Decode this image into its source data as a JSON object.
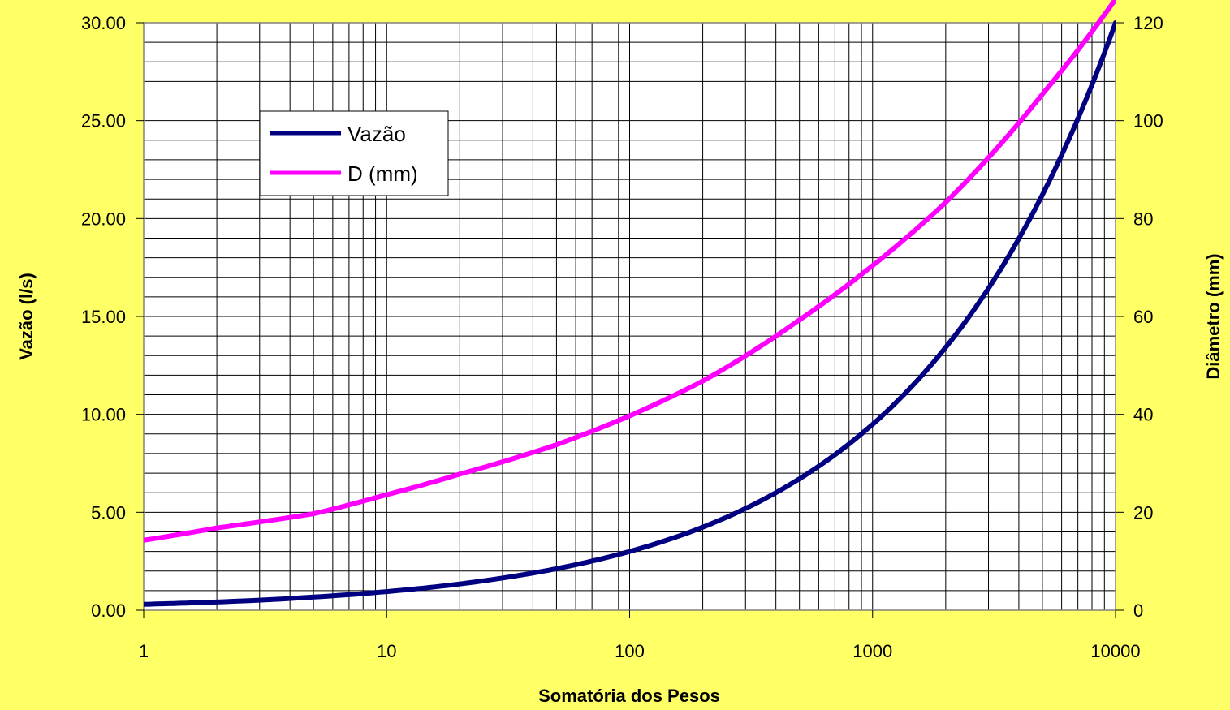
{
  "chart_data": {
    "type": "line",
    "title": "",
    "xlabel": "Somatória dos Pesos",
    "ylabel": "Vazão (l/s)",
    "y2label": "Diâmetro (mm)",
    "xscale": "log",
    "xlim": [
      1,
      10000
    ],
    "ylim": [
      0,
      30
    ],
    "y2lim": [
      0,
      120
    ],
    "grid": true,
    "legend_position": "top-left",
    "x_ticks": [
      "1",
      "10",
      "100",
      "1000",
      "10000"
    ],
    "y_ticks": [
      "0.00",
      "5.00",
      "10.00",
      "15.00",
      "20.00",
      "25.00",
      "30.00"
    ],
    "y2_ticks": [
      "0",
      "20",
      "40",
      "60",
      "80",
      "100",
      "120"
    ],
    "colors": {
      "background": "#FFFF66",
      "plot_area": "#FFFFFF",
      "vazao": "#000080",
      "diameter": "#FF00FF"
    },
    "series": [
      {
        "name": "Vazão",
        "axis": "left",
        "x": [
          1,
          2,
          5,
          10,
          20,
          50,
          100,
          200,
          500,
          1000,
          2000,
          5000,
          10000
        ],
        "values": [
          0.3,
          0.42,
          0.67,
          0.95,
          1.34,
          2.12,
          3.0,
          4.24,
          6.71,
          9.49,
          13.42,
          21.21,
          30.0
        ]
      },
      {
        "name": "D (mm)",
        "axis": "right",
        "x": [
          1,
          2,
          5,
          10,
          20,
          50,
          100,
          200,
          500,
          1000,
          2000,
          5000,
          10000
        ],
        "values": [
          14.3,
          16.8,
          19.7,
          23.6,
          27.8,
          33.8,
          39.7,
          46.8,
          59.3,
          70.4,
          83.3,
          105.4,
          124.8
        ]
      }
    ]
  }
}
